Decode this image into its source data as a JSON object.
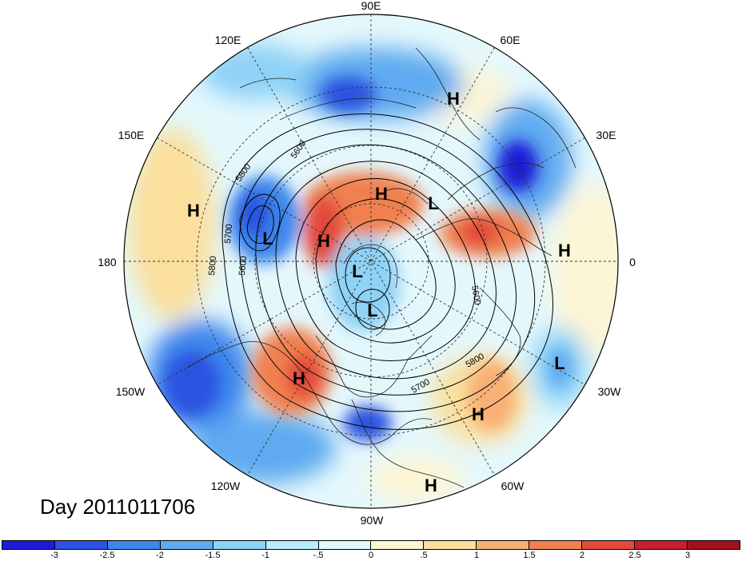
{
  "map": {
    "longitude_labels": [
      "90E",
      "60E",
      "30E",
      "0",
      "30W",
      "60W",
      "90W",
      "120W",
      "150W",
      "180",
      "150E",
      "120E"
    ],
    "contour_labels": [
      "5600",
      "5800",
      "5700",
      "5600",
      "5800",
      "5600",
      "5700",
      "5800"
    ],
    "pressure_centers": [
      {
        "type": "H",
        "region": "east-siberia-north"
      },
      {
        "type": "H",
        "region": "west-pacific"
      },
      {
        "type": "H",
        "region": "arctic-russia"
      },
      {
        "type": "L",
        "region": "west-siberia"
      },
      {
        "type": "L",
        "region": "kamchatka"
      },
      {
        "type": "H",
        "region": "alaska-siberia"
      },
      {
        "type": "H",
        "region": "europe"
      },
      {
        "type": "L",
        "region": "canadian-arctic-north"
      },
      {
        "type": "L",
        "region": "hudson-bay"
      },
      {
        "type": "H",
        "region": "northeast-pacific"
      },
      {
        "type": "L",
        "region": "north-atlantic"
      },
      {
        "type": "H",
        "region": "central-atlantic"
      },
      {
        "type": "H",
        "region": "caribbean"
      }
    ]
  },
  "date_label": "Day 2011011706",
  "colorbar": {
    "colors": [
      "#1d1dd6",
      "#2b52e0",
      "#3d86ec",
      "#5faaf0",
      "#8ed2f6",
      "#b8ecfa",
      "#e4f8fc",
      "#fdf6d6",
      "#fbdf9d",
      "#f7b074",
      "#f08050",
      "#e34a3a",
      "#c81f2c",
      "#a3101e"
    ],
    "tick_labels": [
      "-3",
      "-2.5",
      "-2",
      "-1.5",
      "-1",
      "-.5",
      "0",
      ".5",
      "1",
      "1.5",
      "2",
      "2.5",
      "3"
    ]
  }
}
